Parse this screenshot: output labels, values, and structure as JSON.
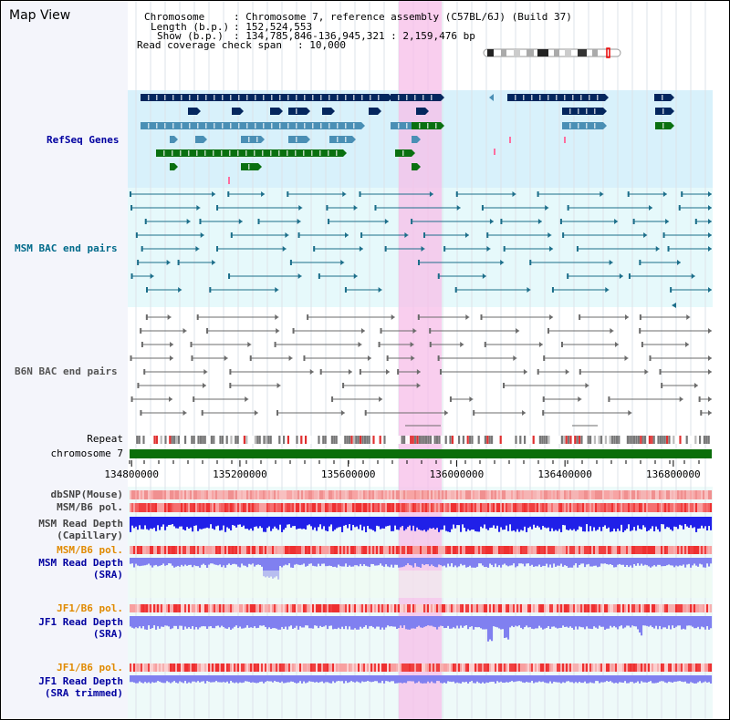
{
  "title": "Map View",
  "info": {
    "chromosome_key": "Chromosome",
    "chromosome_val": ": Chromosome 7, reference assembly (C57BL/6J) (Build 37)",
    "length_key": "Length (b.p.)",
    "length_val": ": 152,524,553",
    "show_key": "Show (b.p.)",
    "show_val": ": 134,785,846-136,945,321 : 2,159,476 bp",
    "coverage_key": "Read coverage check span",
    "coverage_val": ": 10,000"
  },
  "tracks": {
    "refseq": "RefSeq Genes",
    "msm_bac": "MSM BAC end pairs",
    "b6n_bac": "B6N BAC end pairs",
    "repeat": "Repeat",
    "chromosome": "chromosome 7",
    "dbsnp": "dbSNP(Mouse)",
    "msm_b6_pol_1": "MSM/B6 pol.",
    "msm_depth_cap_1": "MSM Read Depth",
    "msm_depth_cap_2": "(Capillary)",
    "msm_b6_pol_2": "MSM/B6 pol.",
    "msm_depth_sra_1": "MSM Read Depth",
    "msm_depth_sra_2": "(SRA)",
    "jf1_b6_pol_1": "JF1/B6 pol.",
    "jf1_depth_sra_1": "JF1 Read Depth",
    "jf1_depth_sra_2": "(SRA)",
    "jf1_b6_pol_2": "JF1/B6 pol.",
    "jf1_depth_trim_1": "JF1 Read Depth",
    "jf1_depth_trim_2": "(SRA trimmed)"
  },
  "axis": {
    "range_bp": [
      134785846,
      136945321
    ],
    "tick_labels": [
      "134800000",
      "135200000",
      "135600000",
      "136000000",
      "136400000",
      "136800000"
    ],
    "tick_values": [
      134800000,
      135200000,
      135600000,
      136000000,
      136400000,
      136800000
    ],
    "highlight_bp": [
      135785000,
      135945000
    ]
  },
  "colors": {
    "refseq_dark": "#04275e",
    "refseq_teal": "#4a8fb5",
    "refseq_green": "#0a7010",
    "msm_bac": "#1c6e8a",
    "b6n_bac": "#6b6b6b",
    "chromosome_bar": "#0a6e0a",
    "depth_blue": "#2020e8",
    "depth_light": "#8080f0",
    "pol_red": "#ee3030",
    "highlight": "#f7bee8",
    "label_blue": "#0000a0",
    "label_orange": "#e08a00",
    "label_teal": "#006a8a"
  }
}
